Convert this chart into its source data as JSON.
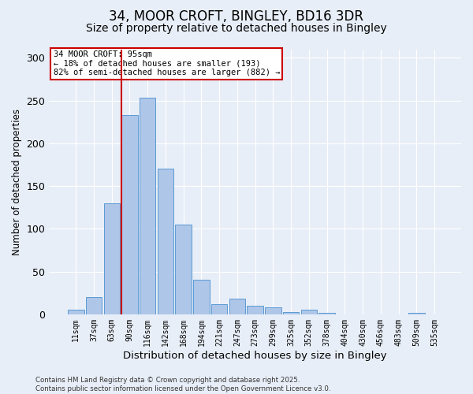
{
  "title1": "34, MOOR CROFT, BINGLEY, BD16 3DR",
  "title2": "Size of property relative to detached houses in Bingley",
  "xlabel": "Distribution of detached houses by size in Bingley",
  "ylabel": "Number of detached properties",
  "categories": [
    "11sqm",
    "37sqm",
    "63sqm",
    "90sqm",
    "116sqm",
    "142sqm",
    "168sqm",
    "194sqm",
    "221sqm",
    "247sqm",
    "273sqm",
    "299sqm",
    "325sqm",
    "352sqm",
    "378sqm",
    "404sqm",
    "430sqm",
    "456sqm",
    "483sqm",
    "509sqm",
    "535sqm"
  ],
  "values": [
    5,
    20,
    130,
    233,
    253,
    170,
    105,
    40,
    12,
    18,
    10,
    8,
    3,
    5,
    2,
    0,
    0,
    0,
    0,
    2,
    0
  ],
  "bar_color": "#aec6e8",
  "bar_edge_color": "#5b9bd5",
  "vline_color": "#cc0000",
  "annotation_text": "34 MOOR CROFT: 95sqm\n← 18% of detached houses are smaller (193)\n82% of semi-detached houses are larger (882) →",
  "annotation_box_color": "#ffffff",
  "annotation_box_edge": "#cc0000",
  "ylim": [
    0,
    310
  ],
  "yticks": [
    0,
    50,
    100,
    150,
    200,
    250,
    300
  ],
  "footer": "Contains HM Land Registry data © Crown copyright and database right 2025.\nContains public sector information licensed under the Open Government Licence v3.0.",
  "bg_color": "#e8eef7",
  "plot_bg_color": "#e8eef7",
  "title1_fontsize": 12,
  "title2_fontsize": 10,
  "vline_bar_index": 3
}
